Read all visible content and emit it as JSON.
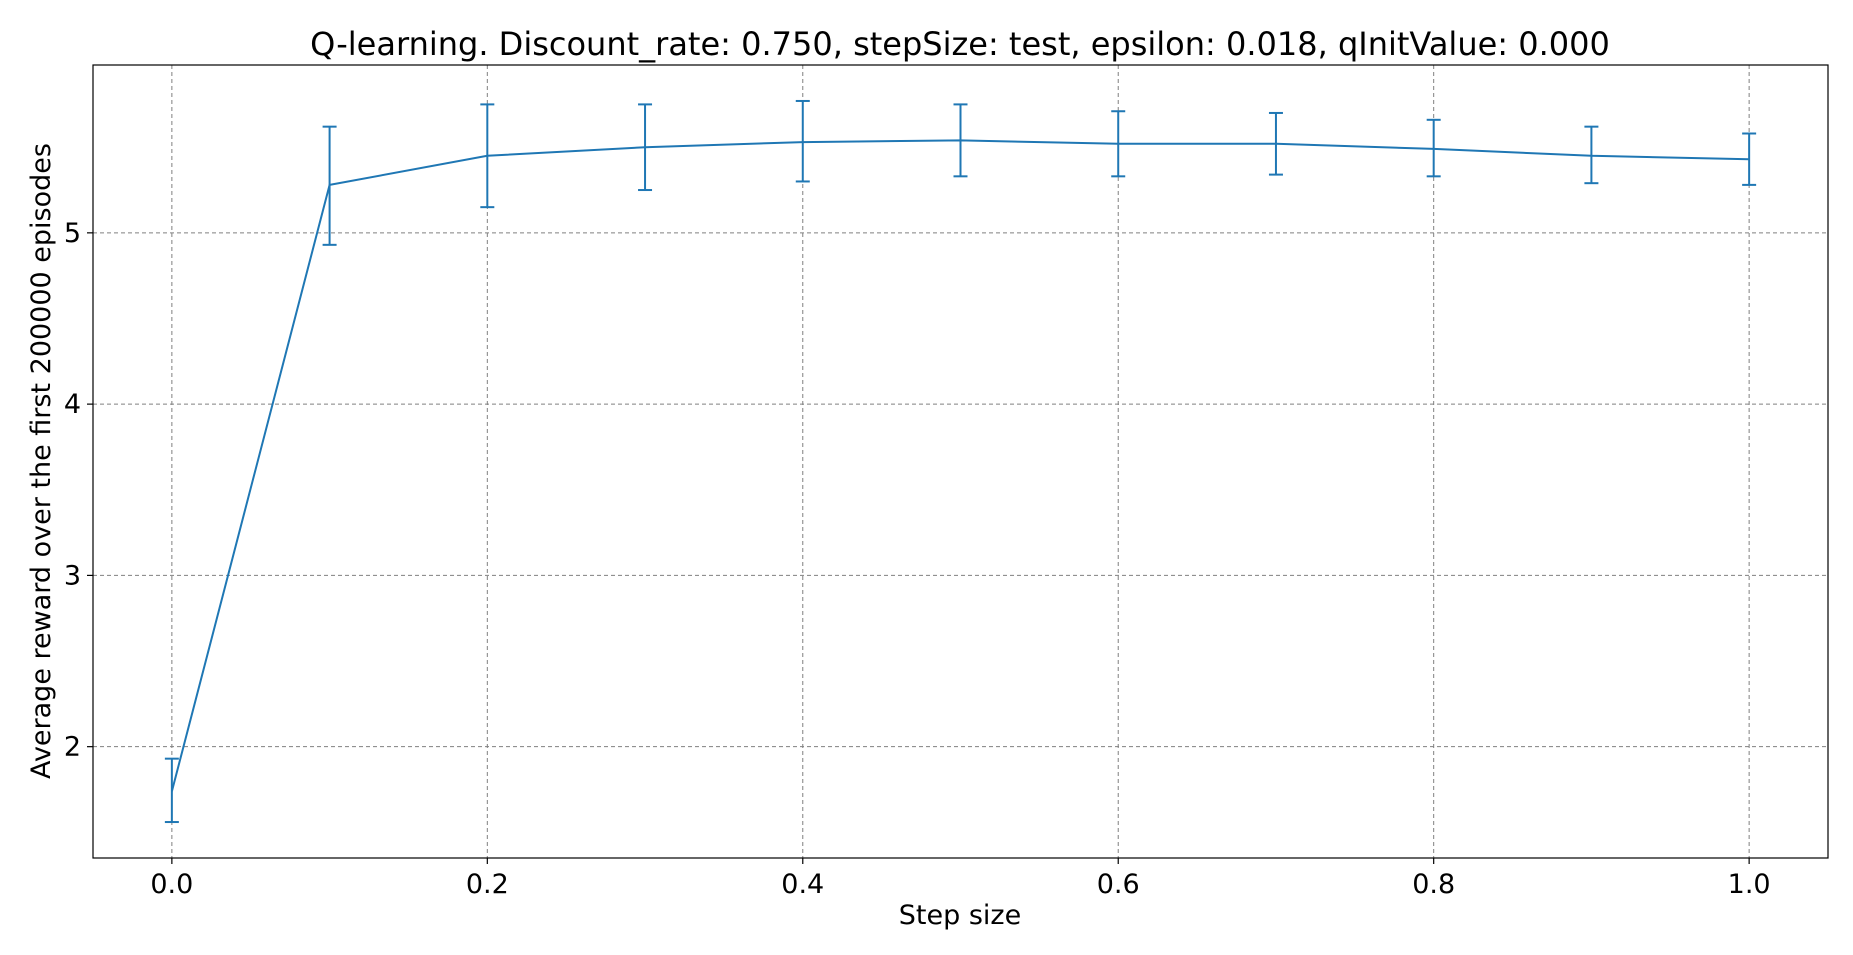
{
  "chart_data": {
    "type": "line",
    "title": "Q-learning. Discount_rate: 0.750, stepSize: test, epsilon: 0.018, qInitValue: 0.000",
    "xlabel": "Step size",
    "ylabel": "Average reward over the first 200000 episodes",
    "xlim": [
      -0.05,
      1.05
    ],
    "ylim": [
      1.35,
      5.98
    ],
    "x_ticks": [
      "0.0",
      "0.2",
      "0.4",
      "0.6",
      "0.8",
      "1.0"
    ],
    "y_ticks": [
      "2",
      "3",
      "4",
      "5"
    ],
    "grid": true,
    "legend": "none",
    "series": [
      {
        "color": "#1f77b4",
        "x": [
          0.0,
          0.1,
          0.2,
          0.3,
          0.4,
          0.5,
          0.6,
          0.7,
          0.8,
          0.9,
          1.0
        ],
        "y": [
          1.74,
          5.28,
          5.45,
          5.5,
          5.53,
          5.54,
          5.52,
          5.52,
          5.49,
          5.45,
          5.43
        ],
        "err_low": [
          1.56,
          4.93,
          5.15,
          5.25,
          5.3,
          5.33,
          5.33,
          5.34,
          5.33,
          5.29,
          5.28
        ],
        "err_high": [
          1.93,
          5.62,
          5.75,
          5.75,
          5.77,
          5.75,
          5.71,
          5.7,
          5.66,
          5.62,
          5.58
        ]
      }
    ]
  }
}
